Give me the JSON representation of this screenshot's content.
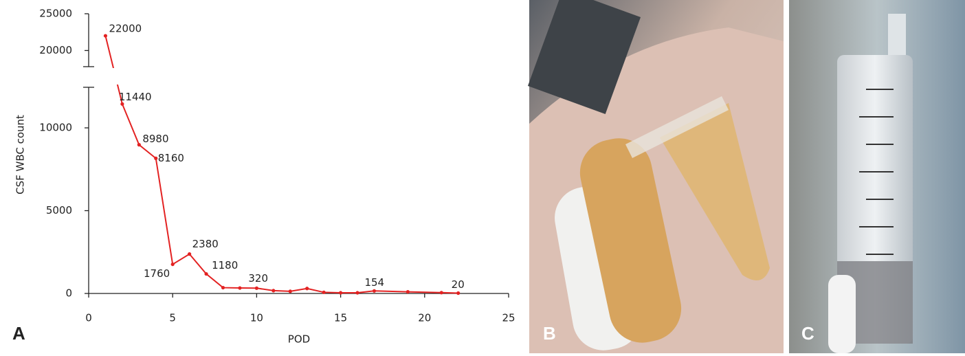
{
  "panels": [
    "A",
    "B",
    "C"
  ],
  "chart_data": {
    "type": "line",
    "x_label": "POD",
    "y_label": "CSF WBC count",
    "x": [
      1,
      2,
      3,
      4,
      5,
      6,
      7,
      8,
      9,
      10,
      11,
      12,
      13,
      14,
      15,
      16,
      17,
      19,
      21,
      22
    ],
    "series": [
      {
        "name": "CSF WBC count",
        "color": "#e32222",
        "values": [
          22000,
          11440,
          8980,
          8160,
          1760,
          2380,
          1180,
          350,
          330,
          320,
          170,
          130,
          300,
          70,
          40,
          40,
          154,
          100,
          50,
          20
        ],
        "value_labels": [
          "22000",
          "11440",
          "8980",
          "8160",
          "1760",
          "2380",
          "1180",
          null,
          null,
          "320",
          null,
          null,
          null,
          null,
          null,
          null,
          "154",
          null,
          null,
          "20"
        ]
      }
    ],
    "xlim": [
      0,
      25
    ],
    "xticks": [
      0,
      5,
      10,
      15,
      20,
      25
    ],
    "ylim": [
      0,
      12450
    ],
    "yticks": [
      0,
      5000,
      10000
    ],
    "ylim_upper": [
      17800,
      25000
    ],
    "yticks_upper": [
      20000,
      25000
    ]
  }
}
